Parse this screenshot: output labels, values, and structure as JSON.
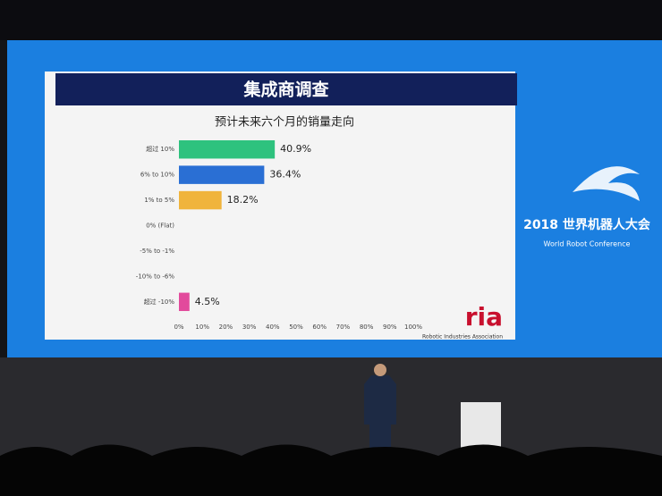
{
  "chart_data": {
    "type": "bar",
    "orientation": "horizontal",
    "title": "集成商调查",
    "subtitle": "预计未来六个月的销量走向",
    "categories": [
      "超过 10%",
      "6% to 10%",
      "1% to 5%",
      "0% (Flat)",
      "-5% to -1%",
      "-10% to -6%",
      "超过 -10%"
    ],
    "values": [
      40.9,
      36.4,
      18.2,
      0,
      0,
      0,
      4.5
    ],
    "value_labels": [
      "40.9%",
      "36.4%",
      "18.2%",
      null,
      null,
      null,
      "4.5%"
    ],
    "colors": [
      "#2ec27e",
      "#2a6fd4",
      "#f0b43c",
      null,
      null,
      null,
      "#e24a9c"
    ],
    "xlim": [
      0,
      100
    ],
    "xticks": [
      {
        "value": 0,
        "label": "0%"
      },
      {
        "value": 10,
        "label": "10%"
      },
      {
        "value": 20,
        "label": "20%"
      },
      {
        "value": 30,
        "label": "30%"
      },
      {
        "value": 40,
        "label": "40%"
      },
      {
        "value": 50,
        "label": "50%"
      },
      {
        "value": 60,
        "label": "60%"
      },
      {
        "value": 70,
        "label": "70%"
      },
      {
        "value": 80,
        "label": "80%"
      },
      {
        "value": 90,
        "label": "90%"
      },
      {
        "value": 100,
        "label": "100%"
      }
    ],
    "grid": false
  },
  "logo": {
    "mark": "ria",
    "name": "Robotic Industries Association"
  },
  "event": {
    "title": "2018 世界机器人大会",
    "subtitle": "World Robot Conference"
  }
}
